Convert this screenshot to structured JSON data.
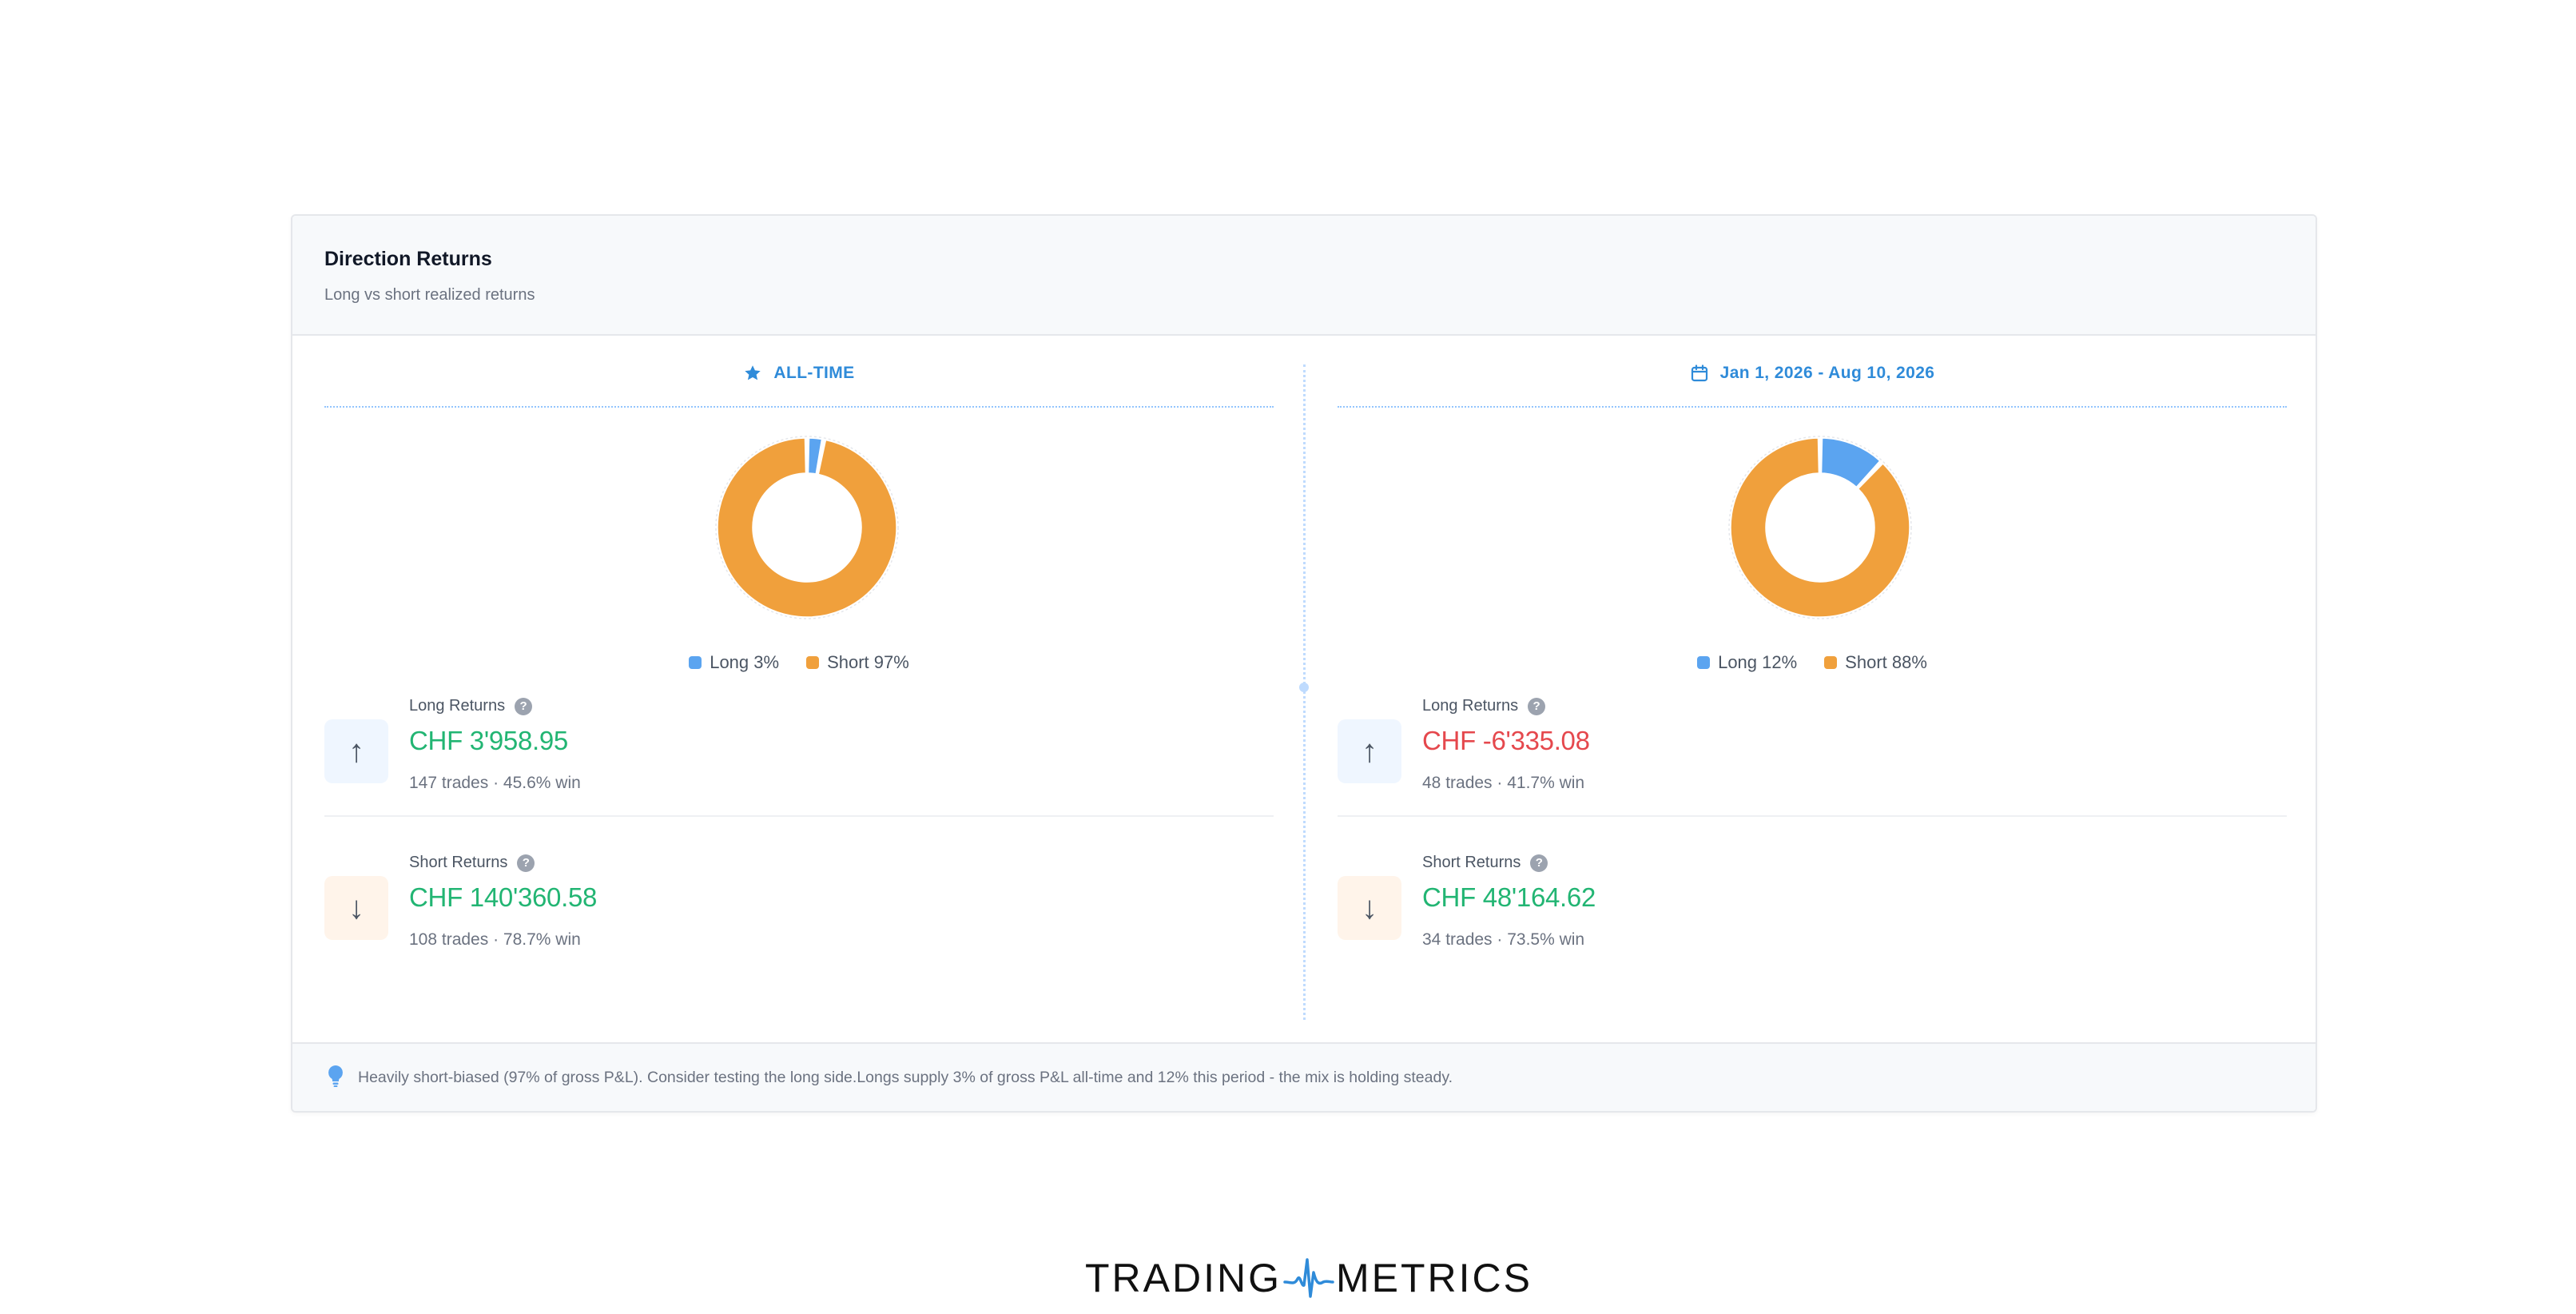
{
  "card": {
    "title": "Direction Returns",
    "subtitle": "Long vs short realized returns"
  },
  "panels": [
    {
      "period_label": "ALL-TIME",
      "period_icon": "star-icon",
      "chart_data": {
        "type": "pie",
        "categories": [
          "Long",
          "Short"
        ],
        "values": [
          3,
          97
        ],
        "colors": [
          "#5ba4f0",
          "#f0a03c"
        ]
      },
      "legend": [
        {
          "label": "Long 3%",
          "color": "#5ba4f0"
        },
        {
          "label": "Short 97%",
          "color": "#f0a03c"
        }
      ],
      "long": {
        "label": "Long Returns",
        "value": "CHF 3'958.95",
        "sub": "147 trades · 45.6% win",
        "sign": "positive"
      },
      "short": {
        "label": "Short Returns",
        "value": "CHF 140'360.58",
        "sub": "108 trades · 78.7% win",
        "sign": "positive"
      }
    },
    {
      "period_label": "Jan 1, 2026 - Aug 10, 2026",
      "period_icon": "calendar-icon",
      "chart_data": {
        "type": "pie",
        "categories": [
          "Long",
          "Short"
        ],
        "values": [
          12,
          88
        ],
        "colors": [
          "#5ba4f0",
          "#f0a03c"
        ]
      },
      "legend": [
        {
          "label": "Long 12%",
          "color": "#5ba4f0"
        },
        {
          "label": "Short 88%",
          "color": "#f0a03c"
        }
      ],
      "long": {
        "label": "Long Returns",
        "value": "CHF -6'335.08",
        "sub": "48 trades · 41.7% win",
        "sign": "negative"
      },
      "short": {
        "label": "Short Returns",
        "value": "CHF 48'164.62",
        "sub": "34 trades · 73.5% win",
        "sign": "positive"
      }
    }
  ],
  "icons": {
    "up": "↑",
    "down": "↓",
    "help": "?"
  },
  "footer": {
    "icon": "lightbulb-icon",
    "text": "Heavily short-biased (97% of gross P&L). Consider testing the long side.Longs supply 3% of gross P&L all-time and 12% this period - the mix is holding steady."
  },
  "brand": {
    "left": "TRADING",
    "right": "METRICS",
    "color": "#2f8bd9"
  }
}
